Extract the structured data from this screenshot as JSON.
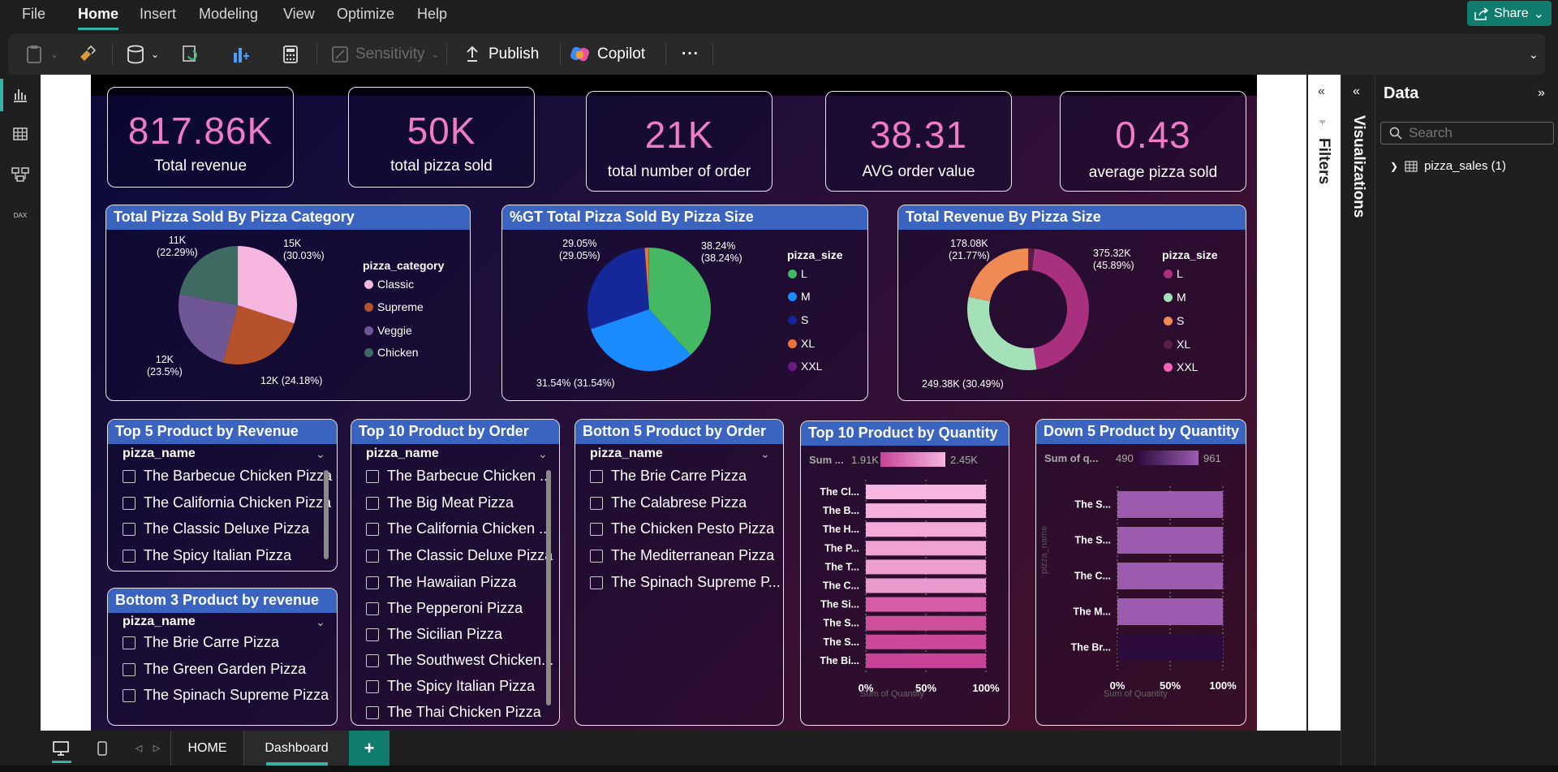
{
  "menu": {
    "items": [
      "File",
      "Home",
      "Insert",
      "Modeling",
      "View",
      "Optimize",
      "Help"
    ],
    "active": "Home",
    "share_label": "Share"
  },
  "ribbon": {
    "sensitivity_label": "Sensitivity",
    "publish_label": "Publish",
    "copilot_label": "Copilot",
    "more_label": "···"
  },
  "kpis": [
    {
      "value": "817.86K",
      "label": "Total revenue"
    },
    {
      "value": "50K",
      "label": "total pizza sold"
    },
    {
      "value": "21K",
      "label": "total number of order"
    },
    {
      "value": "38.31",
      "label": "AVG order value"
    },
    {
      "value": "0.43",
      "label": "average pizza sold"
    }
  ],
  "chart_data": [
    {
      "type": "pie",
      "title": "Total Pizza Sold By Pizza Category",
      "legend_title": "pizza_category",
      "categories": [
        "Classic",
        "Supreme",
        "Veggie",
        "Chicken"
      ],
      "values": [
        15000,
        12000,
        12000,
        11000
      ],
      "percents": [
        30.03,
        24.18,
        23.5,
        22.29
      ],
      "data_labels": [
        [
          "15K",
          "(30.03%)"
        ],
        [
          "12K (24.18%)"
        ],
        [
          "12K",
          "(23.5%)"
        ],
        [
          "11K",
          "(22.29%)"
        ]
      ],
      "colors": [
        "#f7b6e0",
        "#b5522c",
        "#6f5694",
        "#3e6a61"
      ]
    },
    {
      "type": "pie",
      "title": "%GT Total Pizza Sold By Pizza Size",
      "legend_title": "pizza_size",
      "categories": [
        "L",
        "M",
        "S",
        "XL",
        "XXL"
      ],
      "values": [
        38.24,
        31.54,
        29.05,
        1.1,
        0.07
      ],
      "data_labels": [
        [
          "38.24%",
          "(38.24%)"
        ],
        [
          "31.54% (31.54%)"
        ],
        [
          "29.05%",
          "(29.05%)"
        ]
      ],
      "colors": [
        "#45b863",
        "#1a8cff",
        "#14289a",
        "#e8743b",
        "#6d1a85"
      ]
    },
    {
      "type": "pie",
      "title": "Total Revenue By Pizza Size",
      "legend_title": "pizza_size",
      "categories": [
        "L",
        "M",
        "S",
        "XL",
        "XXL"
      ],
      "values": [
        375.32,
        249.38,
        178.08,
        14.08,
        1.0
      ],
      "data_labels": [
        [
          "375.32K",
          "(45.89%)"
        ],
        [
          "249.38K (30.49%)"
        ],
        [
          "178.08K",
          "(21.77%)"
        ]
      ],
      "colors": [
        "#a8307f",
        "#a4e0b8",
        "#ef8a55",
        "#5a1e4a",
        "#f064b8"
      ]
    },
    {
      "type": "bar",
      "title": "Top 10 Product by Quantity",
      "orientation": "horizontal",
      "categories": [
        "The Cl...",
        "The B...",
        "The H...",
        "The P...",
        "The T...",
        "The C...",
        "The Si...",
        "The S...",
        "The S...",
        "The Bi..."
      ],
      "values": [
        100,
        100,
        100,
        100,
        100,
        100,
        100,
        100,
        100,
        100
      ],
      "colors": [
        "#f7b6e0",
        "#f5b0dc",
        "#f3aad8",
        "#f0a3d3",
        "#eda0d0",
        "#e999cc",
        "#d65ba8",
        "#cf4f9f",
        "#cb489b",
        "#c74397"
      ],
      "xticks": [
        "0%",
        "50%",
        "100%"
      ],
      "xlabel": "Sum of Quantity",
      "xlim": [
        0,
        100
      ],
      "color_scale": {
        "label": "Sum ...",
        "min": "1.91K",
        "max": "2.45K"
      }
    },
    {
      "type": "bar",
      "title": "Down 5 Product by Quantity",
      "orientation": "horizontal",
      "categories": [
        "The S...",
        "The S...",
        "The C...",
        "The M...",
        "The Br..."
      ],
      "values": [
        100,
        100,
        100,
        100,
        100
      ],
      "colors": [
        "#9b5cb0",
        "#9b5cb0",
        "#9b5cb0",
        "#9b5cb0",
        "#2b0b3c"
      ],
      "xticks": [
        "0%",
        "50%",
        "100%"
      ],
      "xlabel": "Sum of Quantity",
      "ylabel": "pizza_name",
      "xlim": [
        0,
        100
      ],
      "color_scale": {
        "label": "Sum of q...",
        "min": "490",
        "max": "961"
      }
    }
  ],
  "slicers": [
    {
      "title": "Top 5 Product by Revenue",
      "field": "pizza_name",
      "items": [
        "The Barbecue Chicken Pizza",
        "The California Chicken Pizza",
        "The Classic Deluxe Pizza",
        "The Spicy Italian Pizza"
      ]
    },
    {
      "title": "Bottom 3 Product by revenue",
      "field": "pizza_name",
      "items": [
        "The Brie Carre Pizza",
        "The Green Garden Pizza",
        "The Spinach Supreme Pizza"
      ]
    },
    {
      "title": "Top 10 Product by Order",
      "field": "pizza_name",
      "items": [
        "The Barbecue Chicken ...",
        "The Big Meat Pizza",
        "The California Chicken ...",
        "The Classic Deluxe Pizza",
        "The Hawaiian Pizza",
        "The Pepperoni Pizza",
        "The Sicilian Pizza",
        "The Southwest Chicken...",
        "The Spicy Italian Pizza",
        "The Thai Chicken Pizza"
      ]
    },
    {
      "title": "Botton 5 Product by Order",
      "field": "pizza_name",
      "items": [
        "The Brie Carre Pizza",
        "The Calabrese Pizza",
        "The Chicken Pesto Pizza",
        "The Mediterranean Pizza",
        "The Spinach Supreme P..."
      ]
    }
  ],
  "panes": {
    "filters_label": "Filters",
    "visualizations_label": "Visualizations",
    "data_title": "Data",
    "search_placeholder": "Search",
    "table_name": "pizza_sales (1)"
  },
  "pages": {
    "tabs": [
      "HOME",
      "Dashboard"
    ],
    "active": "Dashboard",
    "add_label": "+"
  },
  "colors": {
    "accent": "#33b3a6",
    "kpi_value": "#f07cc8",
    "panel_title": "#3b64c0"
  }
}
